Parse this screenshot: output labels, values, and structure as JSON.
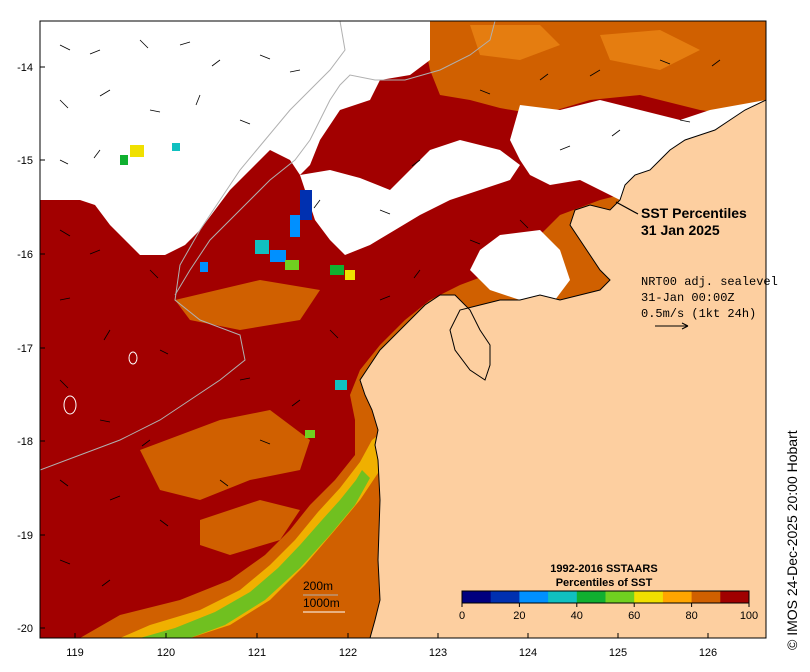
{
  "map": {
    "title_line1": "SST Percentiles",
    "title_line2": "31 Jan 2025",
    "current_info": {
      "line1": "NRT00 adj. sealevel",
      "line2": "31-Jan 00:00Z",
      "line3": "0.5m/s (1kt 24h)"
    },
    "contour_labels": {
      "upper": "200m",
      "lower": "1000m"
    },
    "x_ticks": [
      "119",
      "120",
      "121",
      "122",
      "123",
      "124",
      "125",
      "126"
    ],
    "y_ticks": [
      "-14",
      "-15",
      "-16",
      "-17",
      "-18",
      "-19",
      "-20"
    ],
    "legend": {
      "title_line1": "1992-2016 SSTAARS",
      "title_line2": "Percentiles of SST",
      "colors": [
        "#00007f",
        "#0030b0",
        "#0090ff",
        "#10c0c0",
        "#10b030",
        "#70d020",
        "#f0e000",
        "#ffa500",
        "#d06000",
        "#a00000"
      ],
      "tick_labels": [
        "0",
        "20",
        "40",
        "60",
        "80",
        "100"
      ]
    },
    "colors": {
      "land": "#fdcfa0",
      "cloud": "#ffffff",
      "warm": "#a20000",
      "orange": "#d06000"
    },
    "credit": "© IMOS 24-Dec-2025 20:00 Hobart"
  }
}
